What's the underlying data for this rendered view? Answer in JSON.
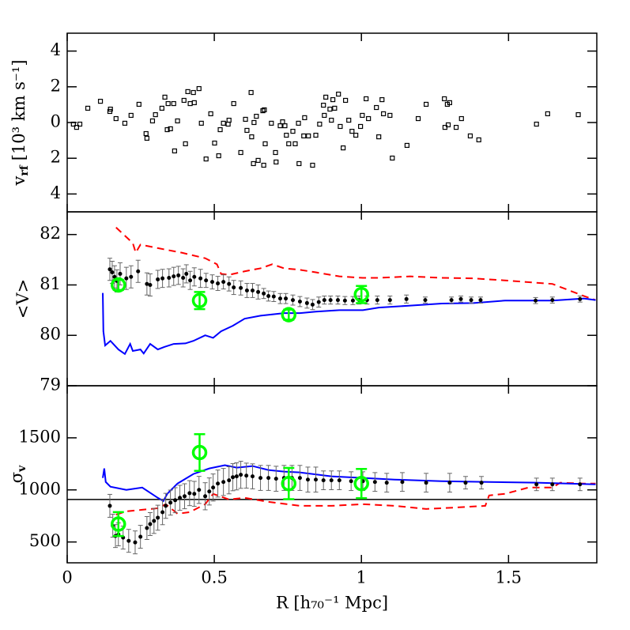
{
  "chart_data": [
    {
      "type": "scatter",
      "ylabel": "v",
      "ylabel_sub": "rf",
      "ylabel_tail": "[10³ km s⁻¹]",
      "xlim": [
        0,
        1.8
      ],
      "xticks": [
        0,
        0.5,
        1,
        1.5
      ],
      "ylim": [
        -5,
        5
      ],
      "yticks": [
        {
          "value": -4,
          "label": "4"
        },
        {
          "value": -2,
          "label": "2"
        },
        0,
        2,
        4
      ],
      "series": [
        {
          "style": "squares",
          "color": "#000000",
          "x": [
            0.021,
            0.032,
            0.043,
            0.07,
            0.113,
            0.145,
            0.147,
            0.166,
            0.196,
            0.217,
            0.244,
            0.268,
            0.271,
            0.29,
            0.3,
            0.322,
            0.332,
            0.34,
            0.343,
            0.351,
            0.362,
            0.365,
            0.375,
            0.397,
            0.402,
            0.41,
            0.418,
            0.429,
            0.432,
            0.448,
            0.456,
            0.472,
            0.488,
            0.501,
            0.515,
            0.52,
            0.531,
            0.547,
            0.55,
            0.566,
            0.59,
            0.606,
            0.611,
            0.625,
            0.627,
            0.633,
            0.635,
            0.643,
            0.649,
            0.668,
            0.665,
            0.67,
            0.673,
            0.694,
            0.708,
            0.71,
            0.724,
            0.732,
            0.74,
            0.745,
            0.753,
            0.767,
            0.775,
            0.786,
            0.788,
            0.804,
            0.807,
            0.82,
            0.834,
            0.845,
            0.858,
            0.871,
            0.874,
            0.879,
            0.893,
            0.898,
            0.903,
            0.909,
            0.922,
            0.928,
            0.938,
            0.946,
            0.957,
            0.968,
            0.981,
            0.997,
            1.003,
            1.016,
            1.024,
            1.051,
            1.059,
            1.07,
            1.075,
            1.097,
            1.105,
            1.155,
            1.193,
            1.22,
            1.282,
            1.284,
            1.292,
            1.295,
            1.3,
            1.322,
            1.34,
            1.37,
            1.399,
            1.595,
            1.633,
            1.737
          ],
          "values": [
            -0.09,
            -0.27,
            -0.09,
            0.8,
            1.19,
            0.62,
            0.75,
            0.22,
            -0.04,
            0.4,
            1.02,
            -0.62,
            -0.88,
            0.09,
            0.44,
            0.8,
            1.42,
            -0.4,
            1.06,
            -0.35,
            1.06,
            -1.59,
            0.09,
            1.24,
            -1.19,
            1.73,
            1.06,
            1.68,
            1.11,
            1.9,
            -0.04,
            -2.04,
            0.49,
            -1.15,
            -1.86,
            -0.4,
            -0.04,
            -0.09,
            0.13,
            1.06,
            -1.68,
            0.18,
            -0.44,
            1.68,
            -0.8,
            -2.3,
            0,
            0.35,
            -2.12,
            -2.39,
            0.66,
            0.71,
            -1.19,
            -0.04,
            -1.68,
            -2.21,
            -0.18,
            0.04,
            -0.18,
            -0.71,
            -1.19,
            -0.49,
            -1.19,
            -0.04,
            -2.3,
            -0.75,
            0.27,
            -0.75,
            -2.39,
            -0.71,
            -0.09,
            0.97,
            0.4,
            1.42,
            0.75,
            0.13,
            1.28,
            0.8,
            1.59,
            -0.22,
            -1.42,
            1.24,
            0.13,
            -0.49,
            -0.71,
            -0.22,
            0.4,
            1.33,
            0.22,
            0.84,
            -0.8,
            1.28,
            0.49,
            0.4,
            -1.99,
            -1.28,
            0.22,
            1.02,
            1.33,
            -0.27,
            1.02,
            -0.13,
            1.11,
            -0.27,
            0.22,
            -0.75,
            -0.97,
            -0.09,
            0.49,
            0.44
          ]
        }
      ]
    },
    {
      "type": "errorbar",
      "ylabel": "<V>",
      "xlim": [
        0,
        1.8
      ],
      "xticks": [
        0,
        0.5,
        1,
        1.5
      ],
      "ylim": [
        79,
        82.45
      ],
      "yticks": [
        79,
        80,
        81,
        82
      ],
      "series": [
        {
          "style": "dashed",
          "color": "#ff0000",
          "x": [
            0.166,
            0.201,
            0.223,
            0.233,
            0.249,
            0.308,
            0.389,
            0.469,
            0.509,
            0.523,
            0.55,
            0.603,
            0.657,
            0.697,
            0.737,
            0.791,
            0.845,
            0.925,
            1.005,
            1.059,
            1.166,
            1.273,
            1.381,
            1.488,
            1.649,
            1.756,
            1.796
          ],
          "values": [
            82.14,
            81.95,
            81.83,
            81.64,
            81.8,
            81.73,
            81.64,
            81.53,
            81.41,
            81.22,
            81.2,
            81.27,
            81.33,
            81.41,
            81.33,
            81.3,
            81.25,
            81.17,
            81.14,
            81.14,
            81.17,
            81.14,
            81.13,
            81.09,
            81.02,
            80.78,
            80.7
          ]
        },
        {
          "style": "line",
          "color": "#0000ff",
          "x": [
            0.121,
            0.123,
            0.129,
            0.147,
            0.174,
            0.196,
            0.214,
            0.223,
            0.249,
            0.26,
            0.282,
            0.308,
            0.33,
            0.362,
            0.402,
            0.429,
            0.469,
            0.496,
            0.523,
            0.563,
            0.603,
            0.657,
            0.737,
            0.791,
            0.845,
            0.925,
            1.005,
            1.059,
            1.166,
            1.273,
            1.381,
            1.488,
            1.649,
            1.756,
            1.796
          ],
          "values": [
            80.84,
            80.08,
            79.8,
            79.89,
            79.72,
            79.63,
            79.83,
            79.69,
            79.72,
            79.64,
            79.83,
            79.72,
            79.77,
            79.83,
            79.84,
            79.89,
            80.0,
            79.95,
            80.08,
            80.19,
            80.33,
            80.39,
            80.44,
            80.44,
            80.47,
            80.5,
            80.5,
            80.55,
            80.59,
            80.63,
            80.64,
            80.69,
            80.69,
            80.73,
            80.7
          ]
        },
        {
          "style": "dots",
          "color": "#000000",
          "error_color": "#666666",
          "x": [
            0.145,
            0.153,
            0.161,
            0.169,
            0.18,
            0.201,
            0.217,
            0.241,
            0.271,
            0.282,
            0.308,
            0.324,
            0.346,
            0.362,
            0.378,
            0.394,
            0.405,
            0.418,
            0.432,
            0.453,
            0.472,
            0.493,
            0.512,
            0.531,
            0.55,
            0.566,
            0.59,
            0.611,
            0.63,
            0.649,
            0.668,
            0.684,
            0.702,
            0.724,
            0.743,
            0.767,
            0.791,
            0.815,
            0.834,
            0.855,
            0.874,
            0.895,
            0.92,
            0.944,
            0.971,
            0.992,
            1.019,
            1.054,
            1.097,
            1.153,
            1.217,
            1.306,
            1.338,
            1.373,
            1.405,
            1.592,
            1.649,
            1.743
          ],
          "values": [
            81.31,
            81.25,
            81.16,
            81.08,
            81.22,
            81.13,
            81.16,
            81.27,
            81.02,
            81.0,
            81.11,
            81.13,
            81.14,
            81.17,
            81.19,
            81.14,
            81.22,
            81.09,
            81.16,
            81.13,
            81.09,
            81.06,
            81.03,
            81.06,
            81.02,
            80.95,
            80.94,
            80.89,
            80.89,
            80.86,
            80.83,
            80.78,
            80.77,
            80.73,
            80.73,
            80.7,
            80.67,
            80.64,
            80.61,
            80.66,
            80.7,
            80.7,
            80.7,
            80.69,
            80.69,
            80.7,
            80.7,
            80.7,
            80.7,
            80.72,
            80.7,
            80.7,
            80.72,
            80.7,
            80.7,
            80.69,
            80.7,
            80.72
          ],
          "errors": [
            0.22,
            0.22,
            0.22,
            0.22,
            0.22,
            0.22,
            0.22,
            0.22,
            0.22,
            0.22,
            0.18,
            0.18,
            0.18,
            0.18,
            0.18,
            0.18,
            0.18,
            0.18,
            0.18,
            0.18,
            0.14,
            0.14,
            0.14,
            0.14,
            0.14,
            0.14,
            0.14,
            0.14,
            0.14,
            0.14,
            0.1,
            0.1,
            0.1,
            0.1,
            0.1,
            0.1,
            0.1,
            0.1,
            0.1,
            0.1,
            0.08,
            0.08,
            0.08,
            0.08,
            0.08,
            0.08,
            0.08,
            0.08,
            0.08,
            0.08,
            0.06,
            0.06,
            0.06,
            0.06,
            0.06,
            0.06,
            0.06,
            0.06
          ]
        },
        {
          "style": "circles",
          "color": "#00ff00",
          "x": [
            0.174,
            0.45,
            0.753,
            1.0
          ],
          "values": [
            81.0,
            80.69,
            80.41,
            80.81
          ],
          "errors": [
            0.1,
            0.17,
            0.1,
            0.17
          ]
        }
      ]
    },
    {
      "type": "errorbar",
      "ylabel": "σ",
      "ylabel_sub": "v",
      "xlabel": "R [h₇₀⁻¹ Mpc]",
      "xticklabels": true,
      "xlim": [
        0,
        1.8
      ],
      "xticks": [
        0,
        0.5,
        1,
        1.5
      ],
      "ylim": [
        300,
        2000
      ],
      "yticks": [
        500,
        1000,
        1500
      ],
      "hline": 908,
      "series": [
        {
          "style": "dashed",
          "color": "#ff0000",
          "x": [
            0.166,
            0.201,
            0.255,
            0.308,
            0.335,
            0.375,
            0.416,
            0.469,
            0.496,
            0.55,
            0.603,
            0.684,
            0.791,
            0.898,
            1.005,
            1.113,
            1.22,
            1.327,
            1.421,
            1.434,
            1.488,
            1.568,
            1.649,
            1.676,
            1.756,
            1.796
          ],
          "values": [
            763,
            794,
            809,
            824,
            863,
            771,
            786,
            863,
            962,
            908,
            924,
            885,
            847,
            847,
            863,
            847,
            817,
            832,
            847,
            947,
            962,
            1023,
            1023,
            1069,
            1061,
            1061
          ]
        },
        {
          "style": "line",
          "color": "#0000ff",
          "x": [
            0.121,
            0.126,
            0.131,
            0.147,
            0.201,
            0.255,
            0.308,
            0.327,
            0.34,
            0.375,
            0.429,
            0.483,
            0.536,
            0.576,
            0.63,
            0.684,
            0.737,
            0.791,
            0.898,
            1.005,
            1.113,
            1.273,
            1.434,
            1.595,
            1.702,
            1.796
          ],
          "values": [
            1115,
            1206,
            1076,
            1031,
            1000,
            1023,
            924,
            893,
            962,
            1061,
            1153,
            1206,
            1237,
            1214,
            1229,
            1191,
            1176,
            1168,
            1130,
            1115,
            1099,
            1084,
            1076,
            1069,
            1061,
            1053
          ]
        },
        {
          "style": "dots",
          "color": "#000000",
          "error_color": "#666666",
          "x": [
            0.145,
            0.155,
            0.164,
            0.174,
            0.19,
            0.209,
            0.231,
            0.249,
            0.271,
            0.282,
            0.295,
            0.308,
            0.324,
            0.335,
            0.351,
            0.367,
            0.383,
            0.399,
            0.416,
            0.432,
            0.448,
            0.469,
            0.483,
            0.496,
            0.512,
            0.531,
            0.55,
            0.563,
            0.576,
            0.59,
            0.609,
            0.63,
            0.657,
            0.684,
            0.71,
            0.737,
            0.764,
            0.791,
            0.818,
            0.845,
            0.871,
            0.898,
            0.925,
            0.965,
            1.005,
            1.046,
            1.086,
            1.139,
            1.22,
            1.3,
            1.354,
            1.408,
            1.595,
            1.649,
            1.743
          ],
          "values": [
            847,
            656,
            557,
            573,
            542,
            511,
            496,
            550,
            634,
            672,
            702,
            733,
            786,
            847,
            878,
            901,
            924,
            939,
            969,
            962,
            1000,
            939,
            985,
            1023,
            1061,
            1076,
            1092,
            1122,
            1130,
            1145,
            1137,
            1130,
            1115,
            1115,
            1107,
            1115,
            1115,
            1115,
            1099,
            1099,
            1092,
            1092,
            1092,
            1084,
            1084,
            1076,
            1069,
            1076,
            1069,
            1069,
            1069,
            1069,
            1053,
            1053,
            1053
          ],
          "errors": [
            110,
            110,
            110,
            110,
            110,
            110,
            110,
            110,
            110,
            110,
            120,
            120,
            120,
            120,
            120,
            120,
            120,
            120,
            120,
            120,
            130,
            130,
            130,
            130,
            130,
            130,
            130,
            130,
            130,
            130,
            120,
            120,
            120,
            120,
            120,
            120,
            120,
            120,
            120,
            120,
            90,
            90,
            90,
            90,
            90,
            90,
            90,
            90,
            90,
            90,
            60,
            60,
            60,
            60,
            60
          ]
        },
        {
          "style": "circles",
          "color": "#00ff00",
          "x": [
            0.174,
            0.45,
            0.753,
            1.0
          ],
          "values": [
            672,
            1359,
            1061,
            1061
          ],
          "errors": [
            115,
            176,
            150,
            140
          ]
        }
      ]
    }
  ]
}
